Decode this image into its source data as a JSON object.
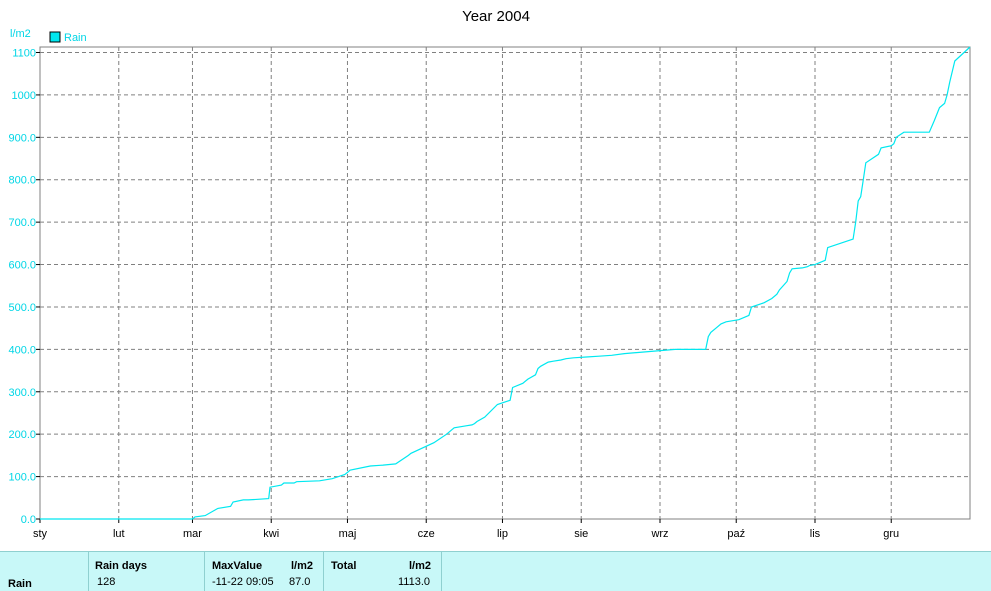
{
  "chart_data": {
    "type": "line",
    "title": "Year 2004",
    "ylabel": "l/m2",
    "ylim": [
      0,
      1113
    ],
    "y_ticks": [
      "0.0",
      "100.0",
      "200.0",
      "300.0",
      "400.0",
      "500.0",
      "600.0",
      "700.0",
      "800.0",
      "900.0",
      "1000",
      "1100"
    ],
    "x_ticks": [
      "sty",
      "lut",
      "mar",
      "kwi",
      "maj",
      "cze",
      "lip",
      "sie",
      "wrz",
      "paź",
      "lis",
      "gru"
    ],
    "xlim": [
      0,
      366
    ],
    "grid": true,
    "legend_position": "top-left",
    "series": [
      {
        "name": "Rain",
        "color": "#00e8f0",
        "x": [
          0,
          60,
          61,
          65,
          70,
          75,
          76,
          80,
          82,
          90,
          90.5,
          95,
          96,
          100,
          101,
          110,
          115,
          120,
          121,
          122,
          130,
          135,
          140,
          145,
          146,
          155,
          160,
          162,
          163,
          168,
          170,
          171,
          172,
          175,
          180,
          185,
          186,
          190,
          192,
          195,
          196,
          197,
          200,
          202,
          205,
          207,
          210,
          215,
          220,
          225,
          230,
          240,
          250,
          262,
          263,
          264,
          266,
          268,
          270,
          275,
          279,
          280,
          285,
          288,
          290,
          291,
          294,
          295,
          296,
          300,
          302,
          303,
          305,
          307,
          309,
          310,
          320,
          321,
          322,
          323,
          324,
          325,
          330,
          331,
          335,
          336,
          337,
          340,
          350,
          352,
          354,
          356,
          357,
          358,
          360,
          366
        ],
        "y": [
          0,
          0,
          5,
          8,
          25,
          30,
          40,
          45,
          45,
          48,
          75,
          80,
          85,
          85,
          88,
          90,
          95,
          105,
          110,
          115,
          125,
          127,
          130,
          150,
          155,
          180,
          200,
          210,
          215,
          220,
          222,
          225,
          230,
          240,
          270,
          280,
          310,
          320,
          330,
          340,
          355,
          360,
          370,
          372,
          375,
          378,
          380,
          382,
          384,
          386,
          390,
          395,
          400,
          400,
          430,
          440,
          450,
          460,
          465,
          470,
          480,
          500,
          510,
          520,
          530,
          540,
          560,
          580,
          590,
          592,
          595,
          598,
          600,
          605,
          610,
          640,
          660,
          700,
          750,
          760,
          800,
          840,
          860,
          875,
          880,
          885,
          900,
          912,
          912,
          940,
          970,
          980,
          1000,
          1030,
          1080,
          1113
        ]
      }
    ]
  },
  "stats": {
    "row_label": "Rain",
    "rain_days_header": "Rain days",
    "rain_days_value": "128",
    "max_header": "MaxValue",
    "max_unit": "l/m2",
    "max_date": "-11-22  09:05",
    "max_value": "87.0",
    "total_header": "Total",
    "total_unit": "l/m2",
    "total_value": "1113.0"
  }
}
